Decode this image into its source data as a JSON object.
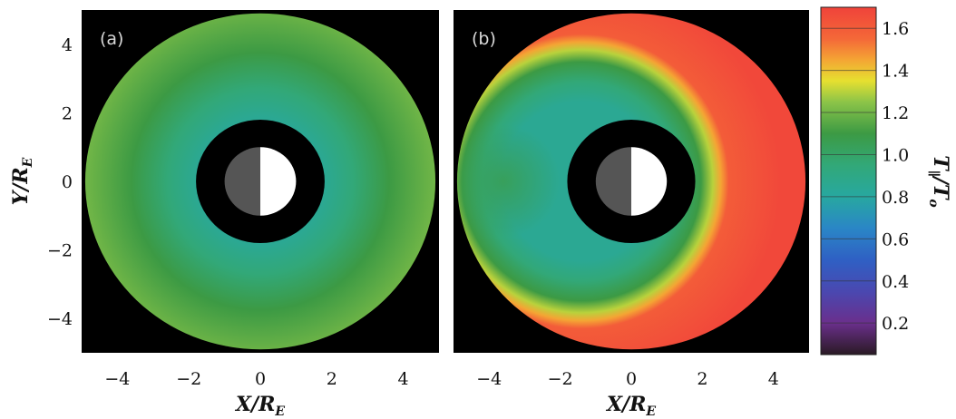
{
  "chart_data": {
    "type": "heatmap",
    "panels": [
      {
        "label": "(a)",
        "description_values": {
          "inner_radius": 1.8,
          "outer_radius": 4.9,
          "ring_stops": [
            {
              "r": 1.8,
              "value": 0.85
            },
            {
              "r": 2.6,
              "value": 0.95
            },
            {
              "r": 3.6,
              "value": 1.1
            },
            {
              "r": 4.9,
              "value": 1.2
            }
          ]
        },
        "planet_radius": 1.0,
        "shadow_radius": 1.8
      },
      {
        "label": "(b)",
        "description_values": {
          "inner_radius": 1.8,
          "outer_radius": 4.9,
          "ring_stops": [
            {
              "r": 1.8,
              "value": 0.85
            },
            {
              "r": 2.4,
              "value": 0.9
            },
            {
              "r": 3.0,
              "value": 1.1
            },
            {
              "r": 3.4,
              "value": 1.35
            },
            {
              "r": 3.8,
              "value": 1.6
            },
            {
              "r": 4.9,
              "value": 1.65
            }
          ]
        },
        "planet_radius": 1.0,
        "shadow_radius": 1.8
      }
    ],
    "xlim": [
      -5,
      5
    ],
    "ylim": [
      -5,
      5
    ],
    "x_ticks": [
      -4,
      -2,
      0,
      2,
      4
    ],
    "y_ticks": [
      4,
      2,
      0,
      -2,
      -4
    ],
    "x_tick_labels": [
      "−4",
      "−2",
      "0",
      "2",
      "4"
    ],
    "y_tick_labels": [
      "4",
      "2",
      "0",
      "−2",
      "−4"
    ],
    "xlabel_main": "X/R",
    "xlabel_sub": "E",
    "ylabel_main": "Y/R",
    "ylabel_sub": "E",
    "colorbar": {
      "label_main": "T",
      "label_sub1": "∥",
      "label_mid": "/T",
      "label_sub2": "o",
      "range": [
        0.05,
        1.7
      ],
      "ticks": [
        1.6,
        1.4,
        1.2,
        1.0,
        0.8,
        0.6,
        0.4,
        0.2
      ],
      "tick_labels": [
        "1.6",
        "1.4",
        "1.2",
        "1.0",
        "0.8",
        "0.6",
        "0.4",
        "0.2"
      ],
      "colors": [
        {
          "value": 0.05,
          "color": "#2a1a24"
        },
        {
          "value": 0.2,
          "color": "#6a2f8c"
        },
        {
          "value": 0.35,
          "color": "#4a48b0"
        },
        {
          "value": 0.5,
          "color": "#2f60c4"
        },
        {
          "value": 0.65,
          "color": "#2a86c6"
        },
        {
          "value": 0.8,
          "color": "#27a8a0"
        },
        {
          "value": 0.95,
          "color": "#32a878"
        },
        {
          "value": 1.1,
          "color": "#3c9a44"
        },
        {
          "value": 1.25,
          "color": "#8cc448"
        },
        {
          "value": 1.35,
          "color": "#e6e030"
        },
        {
          "value": 1.45,
          "color": "#f4a534"
        },
        {
          "value": 1.55,
          "color": "#f46838"
        },
        {
          "value": 1.7,
          "color": "#f0433a"
        }
      ]
    }
  }
}
